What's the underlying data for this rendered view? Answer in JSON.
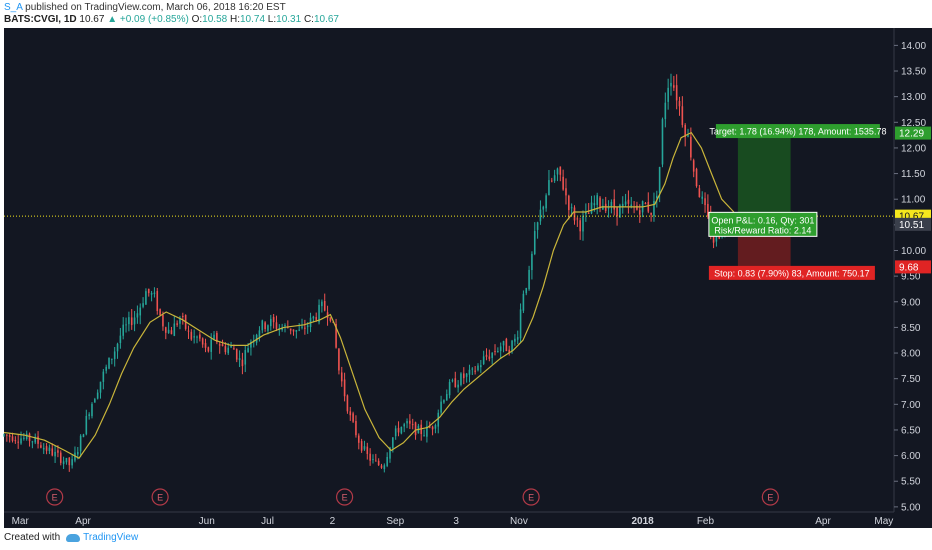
{
  "header": {
    "user": "S_A",
    "published_text": "published on TradingView.com, March 06, 2018 16:20 EST",
    "symbol": "BATS:CVGI, 1D",
    "last": "10.67",
    "change": "▲ +0.09 (+0.85%)",
    "o_label": "O:",
    "o_value": "10.58",
    "h_label": "H:",
    "h_value": "10.74",
    "l_label": "L:",
    "l_value": "10.31",
    "c_label": "C:",
    "c_value": "10.67"
  },
  "footer": {
    "created_with": "Created with",
    "brand": "TradingView"
  },
  "colors": {
    "background": "#131722",
    "up": "#26a69a",
    "down": "#ef5350",
    "ma": "#c9b53a",
    "target_zone": "#1b5e20",
    "stop_zone": "#7f1f1f",
    "price_line": "#f5e71d"
  },
  "chart_data": {
    "type": "candlestick",
    "ylim": [
      4.9,
      14.3
    ],
    "y_ticks": [
      "14.00",
      "13.50",
      "13.00",
      "12.50",
      "12.00",
      "11.50",
      "11.00",
      "10.50",
      "10.00",
      "9.50",
      "9.00",
      "8.50",
      "8.00",
      "7.50",
      "7.00",
      "6.50",
      "6.00",
      "5.50",
      "5.00"
    ],
    "x_range_days": [
      0,
      360
    ],
    "x_ticks": [
      {
        "label": "Mar",
        "day": 8
      },
      {
        "label": "Apr",
        "day": 39
      },
      {
        "label": "Jun",
        "day": 100
      },
      {
        "label": "Jul",
        "day": 130
      },
      {
        "label": "2",
        "day": 162
      },
      {
        "label": "Sep",
        "day": 193
      },
      {
        "label": "3",
        "day": 223
      },
      {
        "label": "Nov",
        "day": 254
      },
      {
        "label": "2018",
        "day": 315
      },
      {
        "label": "Feb",
        "day": 346
      },
      {
        "label": "Apr",
        "day": 404
      },
      {
        "label": "May",
        "day": 434
      }
    ],
    "x_ticks_bold": [
      "2018"
    ],
    "earnings_markers": [
      {
        "label": "E",
        "day": 25
      },
      {
        "label": "E",
        "day": 77
      },
      {
        "label": "E",
        "day": 168
      },
      {
        "label": "E",
        "day": 260
      },
      {
        "label": "E",
        "day": 378
      }
    ],
    "price_trend": [
      [
        0,
        6.4
      ],
      [
        8,
        6.35
      ],
      [
        15,
        6.3
      ],
      [
        22,
        6.1
      ],
      [
        28,
        5.95
      ],
      [
        33,
        5.8
      ],
      [
        37,
        6.2
      ],
      [
        42,
        6.9
      ],
      [
        48,
        7.5
      ],
      [
        54,
        8.0
      ],
      [
        58,
        8.4
      ],
      [
        62,
        8.6
      ],
      [
        66,
        8.8
      ],
      [
        70,
        9.2
      ],
      [
        74,
        9.1
      ],
      [
        78,
        8.6
      ],
      [
        82,
        8.4
      ],
      [
        87,
        8.7
      ],
      [
        92,
        8.3
      ],
      [
        96,
        8.3
      ],
      [
        100,
        8.0
      ],
      [
        104,
        8.3
      ],
      [
        108,
        8.1
      ],
      [
        113,
        8.1
      ],
      [
        117,
        7.8
      ],
      [
        121,
        8.2
      ],
      [
        126,
        8.5
      ],
      [
        131,
        8.6
      ],
      [
        136,
        8.5
      ],
      [
        141,
        8.5
      ],
      [
        146,
        8.4
      ],
      [
        152,
        8.65
      ],
      [
        157,
        8.9
      ],
      [
        161,
        8.75
      ],
      [
        163,
        8.35
      ],
      [
        165,
        7.7
      ],
      [
        168,
        7.2
      ],
      [
        171,
        6.7
      ],
      [
        175,
        6.3
      ],
      [
        179,
        6.0
      ],
      [
        183,
        5.85
      ],
      [
        187,
        5.8
      ],
      [
        191,
        6.3
      ],
      [
        195,
        6.55
      ],
      [
        199,
        6.6
      ],
      [
        203,
        6.5
      ],
      [
        207,
        6.45
      ],
      [
        212,
        6.6
      ],
      [
        216,
        7.1
      ],
      [
        220,
        7.35
      ],
      [
        225,
        7.5
      ],
      [
        231,
        7.6
      ],
      [
        237,
        7.9
      ],
      [
        241,
        8.0
      ],
      [
        245,
        8.15
      ],
      [
        249,
        8.1
      ],
      [
        253,
        8.3
      ],
      [
        256,
        9.2
      ],
      [
        259,
        9.5
      ],
      [
        262,
        10.3
      ],
      [
        265,
        10.8
      ],
      [
        268,
        11.2
      ],
      [
        271,
        11.4
      ],
      [
        274,
        11.5
      ],
      [
        277,
        11.1
      ],
      [
        280,
        10.75
      ],
      [
        284,
        10.5
      ],
      [
        288,
        10.7
      ],
      [
        292,
        10.95
      ],
      [
        297,
        10.9
      ],
      [
        302,
        10.8
      ],
      [
        307,
        10.85
      ],
      [
        312,
        10.8
      ],
      [
        316,
        10.9
      ],
      [
        320,
        10.75
      ],
      [
        323,
        11.4
      ],
      [
        325,
        12.6
      ],
      [
        327,
        13.2
      ],
      [
        329,
        13.4
      ],
      [
        332,
        13.0
      ],
      [
        335,
        12.5
      ],
      [
        338,
        12.1
      ],
      [
        341,
        11.4
      ],
      [
        344,
        11.0
      ],
      [
        347,
        10.6
      ],
      [
        350,
        10.2
      ],
      [
        353,
        10.35
      ],
      [
        356,
        10.55
      ],
      [
        360,
        10.67
      ]
    ],
    "ma_line": [
      [
        0,
        6.45
      ],
      [
        10,
        6.4
      ],
      [
        20,
        6.3
      ],
      [
        30,
        6.1
      ],
      [
        37,
        5.95
      ],
      [
        45,
        6.4
      ],
      [
        52,
        7.0
      ],
      [
        58,
        7.6
      ],
      [
        64,
        8.1
      ],
      [
        72,
        8.6
      ],
      [
        80,
        8.8
      ],
      [
        88,
        8.65
      ],
      [
        96,
        8.45
      ],
      [
        104,
        8.25
      ],
      [
        112,
        8.15
      ],
      [
        120,
        8.15
      ],
      [
        128,
        8.35
      ],
      [
        138,
        8.5
      ],
      [
        148,
        8.55
      ],
      [
        156,
        8.65
      ],
      [
        161,
        8.75
      ],
      [
        166,
        8.3
      ],
      [
        172,
        7.6
      ],
      [
        178,
        6.9
      ],
      [
        185,
        6.35
      ],
      [
        191,
        6.1
      ],
      [
        197,
        6.25
      ],
      [
        203,
        6.5
      ],
      [
        209,
        6.55
      ],
      [
        215,
        6.75
      ],
      [
        221,
        7.05
      ],
      [
        227,
        7.3
      ],
      [
        233,
        7.5
      ],
      [
        239,
        7.7
      ],
      [
        245,
        7.9
      ],
      [
        251,
        8.05
      ],
      [
        256,
        8.25
      ],
      [
        261,
        8.7
      ],
      [
        266,
        9.3
      ],
      [
        271,
        10.0
      ],
      [
        276,
        10.5
      ],
      [
        281,
        10.75
      ],
      [
        287,
        10.75
      ],
      [
        295,
        10.85
      ],
      [
        305,
        10.85
      ],
      [
        315,
        10.85
      ],
      [
        321,
        10.9
      ],
      [
        326,
        11.3
      ],
      [
        330,
        11.8
      ],
      [
        334,
        12.2
      ],
      [
        339,
        12.3
      ],
      [
        344,
        12.0
      ],
      [
        349,
        11.5
      ],
      [
        354,
        11.0
      ],
      [
        360,
        10.75
      ]
    ],
    "position": {
      "entry": 10.51,
      "target": 12.29,
      "stop": 9.68,
      "last": 10.67,
      "start_day": 362,
      "end_day": 388,
      "target_label": "Target: 1.78 (16.94%) 178, Amount: 1535.78",
      "stop_label": "Stop: 0.83 (7.90%) 83, Amount: 750.17",
      "pnl_label_1": "Open P&L: 0.16, Qty: 301",
      "pnl_label_2": "Risk/Reward Ratio: 2.14"
    },
    "price_tags": [
      {
        "text": "12.29",
        "value": 12.29,
        "bg": "#2e9e2e",
        "fg": "#ffffff"
      },
      {
        "text": "10.67",
        "value": 10.67,
        "bg": "#f5e71d",
        "fg": "#131722"
      },
      {
        "text": "10.51",
        "value": 10.51,
        "bg": "#3a3f4b",
        "fg": "#ffffff"
      },
      {
        "text": "9.68",
        "value": 9.68,
        "bg": "#e02424",
        "fg": "#ffffff"
      }
    ]
  }
}
